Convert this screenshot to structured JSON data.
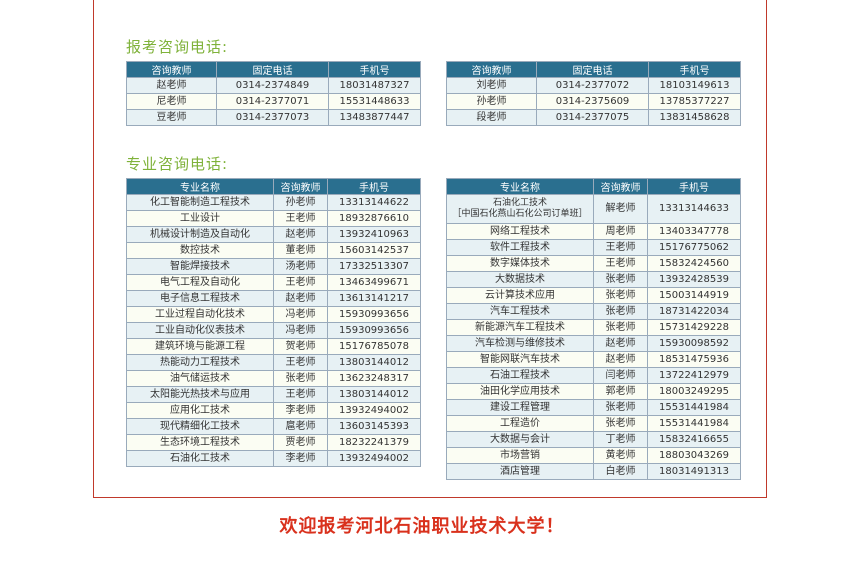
{
  "admissions": {
    "title": "报考咨询电话:",
    "headers": [
      "咨询教师",
      "固定电话",
      "手机号"
    ],
    "left": [
      [
        "赵老师",
        "0314-2374849",
        "18031487327"
      ],
      [
        "尼老师",
        "0314-2377071",
        "15531448633"
      ],
      [
        "豆老师",
        "0314-2377073",
        "13483877447"
      ]
    ],
    "right": [
      [
        "刘老师",
        "0314-2377072",
        "18103149613"
      ],
      [
        "孙老师",
        "0314-2375609",
        "13785377227"
      ],
      [
        "段老师",
        "0314-2377075",
        "13831458628"
      ]
    ]
  },
  "majors": {
    "title": "专业咨询电话:",
    "headers": [
      "专业名称",
      "咨询教师",
      "手机号"
    ],
    "left": [
      [
        "化工智能制造工程技术",
        "孙老师",
        "13313144622"
      ],
      [
        "工业设计",
        "王老师",
        "18932876610"
      ],
      [
        "机械设计制造及自动化",
        "赵老师",
        "13932410963"
      ],
      [
        "数控技术",
        "董老师",
        "15603142537"
      ],
      [
        "智能焊接技术",
        "汤老师",
        "17332513307"
      ],
      [
        "电气工程及自动化",
        "王老师",
        "13463499671"
      ],
      [
        "电子信息工程技术",
        "赵老师",
        "13613141217"
      ],
      [
        "工业过程自动化技术",
        "冯老师",
        "15930993656"
      ],
      [
        "工业自动化仪表技术",
        "冯老师",
        "15930993656"
      ],
      [
        "建筑环境与能源工程",
        "贺老师",
        "15176785078"
      ],
      [
        "热能动力工程技术",
        "王老师",
        "13803144012"
      ],
      [
        "油气储运技术",
        "张老师",
        "13623248317"
      ],
      [
        "太阳能光热技术与应用",
        "王老师",
        "13803144012"
      ],
      [
        "应用化工技术",
        "李老师",
        "13932494002"
      ],
      [
        "现代精细化工技术",
        "扈老师",
        "13603145393"
      ],
      [
        "生态环境工程技术",
        "贾老师",
        "18232241379"
      ],
      [
        "石油化工技术",
        "李老师",
        "13932494002"
      ]
    ],
    "right": [
      [
        "石油化工技术\n［中国石化燕山石化公司订单班］",
        "解老师",
        "13313144633"
      ],
      [
        "网络工程技术",
        "周老师",
        "13403347778"
      ],
      [
        "软件工程技术",
        "王老师",
        "15176775062"
      ],
      [
        "数字媒体技术",
        "王老师",
        "15832424560"
      ],
      [
        "大数据技术",
        "张老师",
        "13932428539"
      ],
      [
        "云计算技术应用",
        "张老师",
        "15003144919"
      ],
      [
        "汽车工程技术",
        "张老师",
        "18731422034"
      ],
      [
        "新能源汽车工程技术",
        "张老师",
        "15731429228"
      ],
      [
        "汽车检测与维修技术",
        "赵老师",
        "15930098592"
      ],
      [
        "智能网联汽车技术",
        "赵老师",
        "18531475936"
      ],
      [
        "石油工程技术",
        "闫老师",
        "13722412979"
      ],
      [
        "油田化学应用技术",
        "郭老师",
        "18003249295"
      ],
      [
        "建设工程管理",
        "张老师",
        "15531441984"
      ],
      [
        "工程造价",
        "张老师",
        "15531441984"
      ],
      [
        "大数据与会计",
        "丁老师",
        "15832416655"
      ],
      [
        "市场营销",
        "黄老师",
        "18803043269"
      ],
      [
        "酒店管理",
        "白老师",
        "18031491313"
      ]
    ]
  },
  "footer": "欢迎报考河北石油职业技术大学！"
}
